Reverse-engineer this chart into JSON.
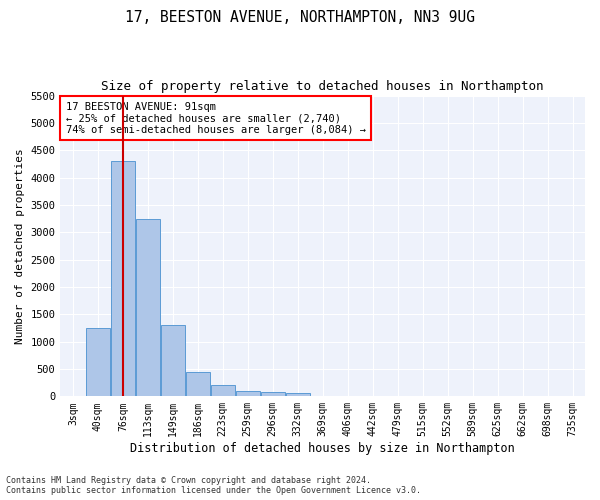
{
  "title": "17, BEESTON AVENUE, NORTHAMPTON, NN3 9UG",
  "subtitle": "Size of property relative to detached houses in Northampton",
  "xlabel": "Distribution of detached houses by size in Northampton",
  "ylabel": "Number of detached properties",
  "footnote1": "Contains HM Land Registry data © Crown copyright and database right 2024.",
  "footnote2": "Contains public sector information licensed under the Open Government Licence v3.0.",
  "bins": [
    "3sqm",
    "40sqm",
    "76sqm",
    "113sqm",
    "149sqm",
    "186sqm",
    "223sqm",
    "259sqm",
    "296sqm",
    "332sqm",
    "369sqm",
    "406sqm",
    "442sqm",
    "479sqm",
    "515sqm",
    "552sqm",
    "589sqm",
    "625sqm",
    "662sqm",
    "698sqm",
    "735sqm"
  ],
  "values": [
    0,
    1250,
    4300,
    3250,
    1300,
    450,
    200,
    100,
    80,
    60,
    0,
    0,
    0,
    0,
    0,
    0,
    0,
    0,
    0,
    0,
    0
  ],
  "bar_color": "#aec6e8",
  "bar_edge_color": "#5b9bd5",
  "red_line_index": 2,
  "annotation_line1": "17 BEESTON AVENUE: 91sqm",
  "annotation_line2": "← 25% of detached houses are smaller (2,740)",
  "annotation_line3": "74% of semi-detached houses are larger (8,084) →",
  "ylim": [
    0,
    5500
  ],
  "yticks": [
    0,
    500,
    1000,
    1500,
    2000,
    2500,
    3000,
    3500,
    4000,
    4500,
    5000,
    5500
  ],
  "red_line_color": "#cc0000",
  "annotation_fontsize": 7.5,
  "title_fontsize": 10.5,
  "subtitle_fontsize": 9,
  "xlabel_fontsize": 8.5,
  "ylabel_fontsize": 8,
  "plot_bg_color": "#eef2fb"
}
